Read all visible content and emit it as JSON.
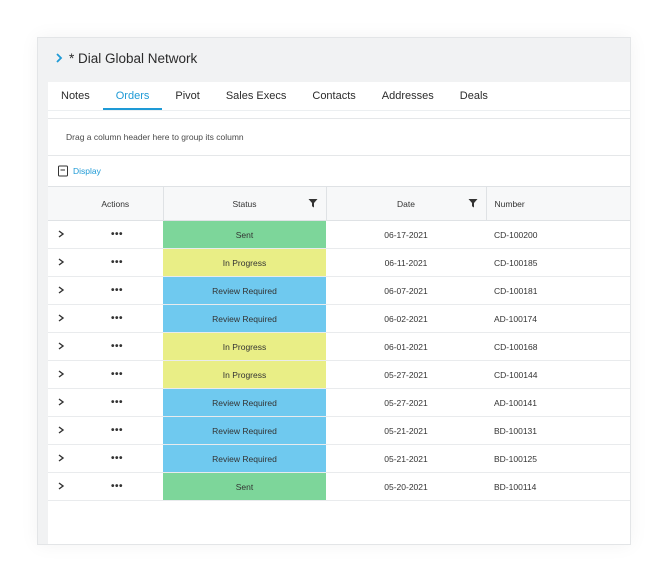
{
  "header": {
    "title": "* Dial Global Network"
  },
  "tabs": [
    {
      "label": "Notes",
      "active": false
    },
    {
      "label": "Orders",
      "active": true
    },
    {
      "label": "Pivot",
      "active": false
    },
    {
      "label": "Sales Execs",
      "active": false
    },
    {
      "label": "Contacts",
      "active": false
    },
    {
      "label": "Addresses",
      "active": false
    },
    {
      "label": "Deals",
      "active": false
    }
  ],
  "grid": {
    "group_hint": "Drag a column header here to group its column",
    "display_label": "Display",
    "columns": {
      "actions": "Actions",
      "status": "Status",
      "date": "Date",
      "number": "Number"
    },
    "actions_glyph": "•••",
    "rows": [
      {
        "status": "Sent",
        "status_kind": "sent",
        "date": "06-17-2021",
        "number": "CD-100200"
      },
      {
        "status": "In Progress",
        "status_kind": "progress",
        "date": "06-11-2021",
        "number": "CD-100185"
      },
      {
        "status": "Review Required",
        "status_kind": "review",
        "date": "06-07-2021",
        "number": "CD-100181"
      },
      {
        "status": "Review Required",
        "status_kind": "review",
        "date": "06-02-2021",
        "number": "AD-100174"
      },
      {
        "status": "In Progress",
        "status_kind": "progress",
        "date": "06-01-2021",
        "number": "CD-100168"
      },
      {
        "status": "In Progress",
        "status_kind": "progress",
        "date": "05-27-2021",
        "number": "CD-100144"
      },
      {
        "status": "Review Required",
        "status_kind": "review",
        "date": "05-27-2021",
        "number": "AD-100141"
      },
      {
        "status": "Review Required",
        "status_kind": "review",
        "date": "05-21-2021",
        "number": "BD-100131"
      },
      {
        "status": "Review Required",
        "status_kind": "review",
        "date": "05-21-2021",
        "number": "BD-100125"
      },
      {
        "status": "Sent",
        "status_kind": "sent",
        "date": "05-20-2021",
        "number": "BD-100114"
      }
    ]
  },
  "colors": {
    "accent": "#1e9ad6",
    "sent": "#7dd69a",
    "in_progress": "#e9ee86",
    "review_required": "#6fc9ef"
  }
}
